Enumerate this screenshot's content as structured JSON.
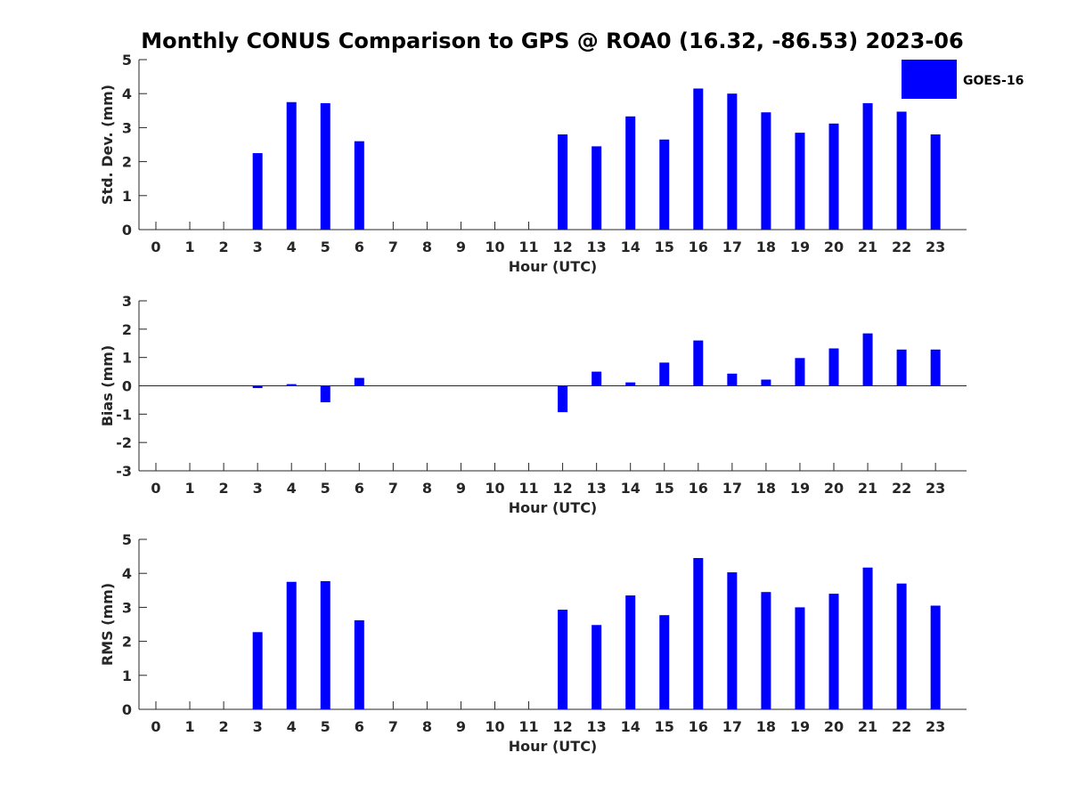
{
  "chart_title": "Monthly CONUS Comparison to GPS @ ROA0 (16.32, -86.53) 2023-06",
  "legend": {
    "label": "GOES-16",
    "color": "#0000ff",
    "placement": "top-right"
  },
  "chart_data": [
    {
      "type": "bar",
      "xlabel": "Hour (UTC)",
      "ylabel": "Std. Dev. (mm)",
      "ylim": [
        0,
        5
      ],
      "yticks": [
        0,
        1,
        2,
        3,
        4,
        5
      ],
      "categories": [
        "0",
        "1",
        "2",
        "3",
        "4",
        "5",
        "6",
        "7",
        "8",
        "9",
        "10",
        "11",
        "12",
        "13",
        "14",
        "15",
        "16",
        "17",
        "18",
        "19",
        "20",
        "21",
        "22",
        "23"
      ],
      "series": [
        {
          "name": "GOES-16",
          "color": "#0000ff",
          "values": [
            null,
            null,
            null,
            2.25,
            3.75,
            3.72,
            2.6,
            null,
            null,
            null,
            null,
            null,
            2.8,
            2.45,
            3.33,
            2.65,
            4.15,
            4.0,
            3.45,
            2.85,
            3.12,
            3.72,
            3.47,
            2.8
          ]
        }
      ]
    },
    {
      "type": "bar",
      "xlabel": "Hour (UTC)",
      "ylabel": "Bias (mm)",
      "ylim": [
        -3,
        3
      ],
      "yticks": [
        -3,
        -2,
        -1,
        0,
        1,
        2,
        3
      ],
      "categories": [
        "0",
        "1",
        "2",
        "3",
        "4",
        "5",
        "6",
        "7",
        "8",
        "9",
        "10",
        "11",
        "12",
        "13",
        "14",
        "15",
        "16",
        "17",
        "18",
        "19",
        "20",
        "21",
        "22",
        "23"
      ],
      "series": [
        {
          "name": "GOES-16",
          "color": "#0000ff",
          "values": [
            null,
            null,
            null,
            -0.08,
            0.06,
            -0.58,
            0.28,
            null,
            null,
            null,
            null,
            null,
            -0.93,
            0.5,
            0.12,
            0.82,
            1.6,
            0.43,
            0.22,
            0.98,
            1.32,
            1.85,
            1.28,
            1.28
          ]
        }
      ]
    },
    {
      "type": "bar",
      "xlabel": "Hour (UTC)",
      "ylabel": "RMS (mm)",
      "ylim": [
        0,
        5
      ],
      "yticks": [
        0,
        1,
        2,
        3,
        4,
        5
      ],
      "categories": [
        "0",
        "1",
        "2",
        "3",
        "4",
        "5",
        "6",
        "7",
        "8",
        "9",
        "10",
        "11",
        "12",
        "13",
        "14",
        "15",
        "16",
        "17",
        "18",
        "19",
        "20",
        "21",
        "22",
        "23"
      ],
      "series": [
        {
          "name": "GOES-16",
          "color": "#0000ff",
          "values": [
            null,
            null,
            null,
            2.27,
            3.75,
            3.77,
            2.62,
            null,
            null,
            null,
            null,
            null,
            2.93,
            2.48,
            3.35,
            2.77,
            4.45,
            4.03,
            3.45,
            3.0,
            3.4,
            4.17,
            3.7,
            3.05
          ]
        }
      ]
    }
  ]
}
